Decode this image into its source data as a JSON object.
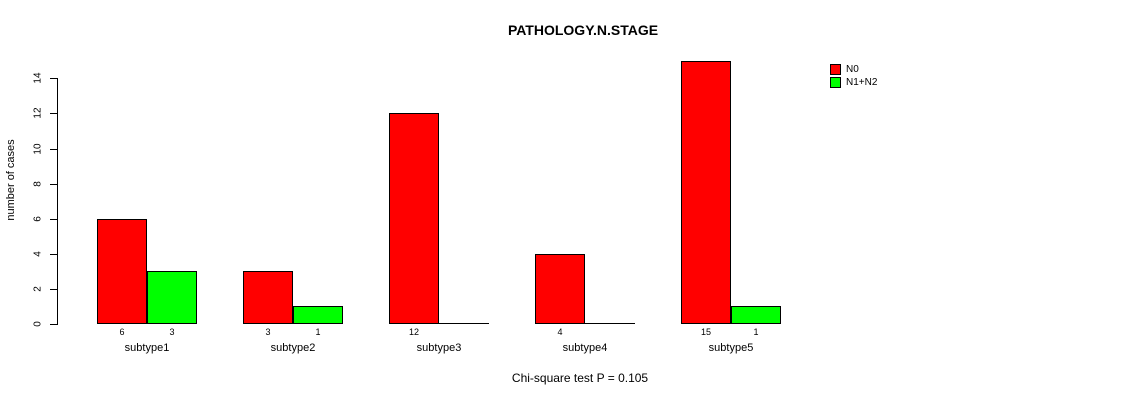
{
  "chart_data": {
    "type": "bar",
    "title": "PATHOLOGY.N.STAGE",
    "ylabel": "number of cases",
    "xlabel": "",
    "caption": "Chi-square test P = 0.105",
    "categories": [
      "subtype1",
      "subtype2",
      "subtype3",
      "subtype4",
      "subtype5"
    ],
    "series": [
      {
        "name": "N0",
        "color": "#ff0000",
        "values": [
          6,
          3,
          12,
          4,
          15
        ]
      },
      {
        "name": "N1+N2",
        "color": "#00ff00",
        "values": [
          3,
          1,
          0,
          0,
          1
        ]
      }
    ],
    "bar_value_labels": [
      [
        "6",
        "3"
      ],
      [
        "3",
        "1"
      ],
      [
        "12",
        ""
      ],
      [
        "4",
        ""
      ],
      [
        "15",
        "1"
      ]
    ],
    "yticks": [
      0,
      2,
      4,
      6,
      8,
      10,
      12,
      14
    ],
    "ylim": [
      0,
      15
    ],
    "legend_position": "top-right",
    "grid": false,
    "background": "#ffffff",
    "text_color": "#000000"
  }
}
